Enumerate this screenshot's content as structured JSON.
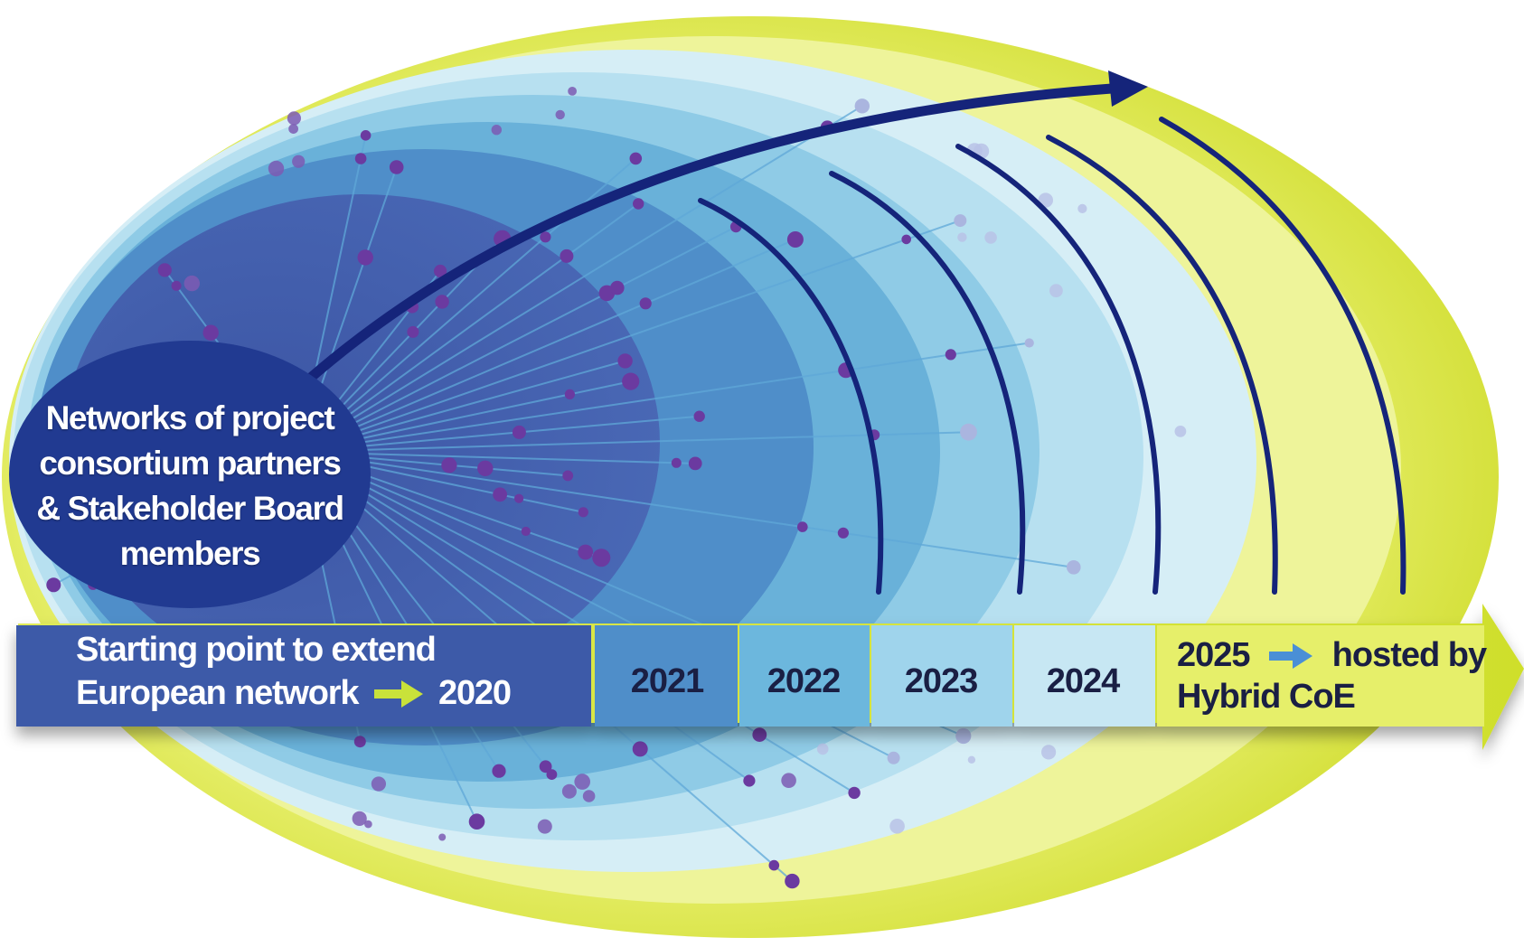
{
  "diagram": {
    "center_node": {
      "lines": [
        "Networks of project",
        "consortium partners",
        "& Stakeholder Board",
        "members"
      ]
    },
    "timeline": {
      "start": {
        "line1": "Starting point to extend",
        "line2_prefix": "European network",
        "line2_year": "2020"
      },
      "years": [
        "2021",
        "2022",
        "2023",
        "2024"
      ],
      "final": {
        "year": "2025",
        "suffix": "hosted by",
        "line2": "Hybrid CoE"
      }
    },
    "colors": {
      "outer_ring": "#dbe73a",
      "ring_light": "#eef39a",
      "ring_blue_1": "#cbe8f3",
      "ring_blue_2": "#9fd6ec",
      "ring_blue_3": "#6bbcdd",
      "ring_blue_4": "#4a92c8",
      "core": "#3f5ba9",
      "node_dark": "#1f3a8f",
      "arc_navy": "#15247a",
      "dot_purple": "#6b3aa0",
      "dot_pale": "#aab5df",
      "start_box": "#3d5aa8",
      "arrow_green": "#c9e23a",
      "arrow_blue": "#4a8fd6"
    }
  }
}
